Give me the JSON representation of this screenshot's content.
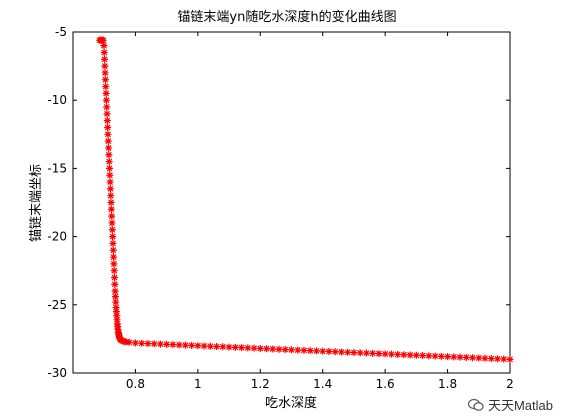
{
  "chart_data": {
    "type": "scatter",
    "title": "锚链末端yn随吃水深度h的变化曲线图",
    "xlabel": "吃水深度",
    "ylabel": "锚链末端坐标",
    "xlim": [
      0.6,
      2.0
    ],
    "ylim": [
      -30,
      -5
    ],
    "xticks": [
      0.8,
      1,
      1.2,
      1.4,
      1.6,
      1.8,
      2
    ],
    "xtick_labels": [
      "0.8",
      "1",
      "1.2",
      "1.4",
      "1.6",
      "1.8",
      "2"
    ],
    "yticks": [
      -5,
      -10,
      -15,
      -20,
      -25,
      -30
    ],
    "ytick_labels": [
      "-5",
      "-10",
      "-15",
      "-20",
      "-25",
      "-30"
    ],
    "marker": "*",
    "color": "#ff0000",
    "grid": false,
    "series": [
      {
        "x": [
          0.685,
          0.689,
          0.693,
          0.697,
          0.699,
          0.7,
          0.701,
          0.702,
          0.703,
          0.704,
          0.705,
          0.706,
          0.707,
          0.708,
          0.709,
          0.71,
          0.711,
          0.712,
          0.713,
          0.714,
          0.715,
          0.716,
          0.717,
          0.718,
          0.719,
          0.72,
          0.721,
          0.722,
          0.723,
          0.724,
          0.725,
          0.726,
          0.727,
          0.728,
          0.729,
          0.73,
          0.731,
          0.732,
          0.733,
          0.734,
          0.735,
          0.736,
          0.737,
          0.738,
          0.739,
          0.74,
          0.741,
          0.742,
          0.743,
          0.744,
          0.745,
          0.746,
          0.747,
          0.748,
          0.749,
          0.75,
          0.752,
          0.755,
          0.76,
          0.765,
          0.77,
          0.78,
          0.8,
          0.82,
          0.84,
          0.86,
          0.88,
          0.9,
          0.92,
          0.94,
          0.96,
          0.98,
          1.0,
          1.02,
          1.04,
          1.06,
          1.08,
          1.1,
          1.12,
          1.14,
          1.16,
          1.18,
          1.2,
          1.22,
          1.24,
          1.26,
          1.28,
          1.3,
          1.32,
          1.34,
          1.36,
          1.38,
          1.4,
          1.42,
          1.44,
          1.46,
          1.48,
          1.5,
          1.52,
          1.54,
          1.56,
          1.58,
          1.6,
          1.62,
          1.64,
          1.66,
          1.68,
          1.7,
          1.72,
          1.74,
          1.76,
          1.78,
          1.8,
          1.82,
          1.84,
          1.86,
          1.88,
          1.9,
          1.92,
          1.94,
          1.96,
          1.98,
          2.0
        ],
        "y": [
          -5.6,
          -5.6,
          -5.6,
          -5.6,
          -6.0,
          -6.5,
          -7.0,
          -7.5,
          -8.0,
          -8.5,
          -9.0,
          -9.5,
          -10.0,
          -10.5,
          -11.0,
          -11.5,
          -12.0,
          -12.5,
          -13.0,
          -13.5,
          -14.0,
          -14.5,
          -15.0,
          -15.5,
          -16.0,
          -16.5,
          -17.0,
          -17.5,
          -18.0,
          -18.5,
          -19.0,
          -19.5,
          -20.0,
          -20.5,
          -21.0,
          -21.5,
          -22.0,
          -22.5,
          -23.0,
          -23.5,
          -24.0,
          -24.4,
          -24.8,
          -25.2,
          -25.5,
          -25.8,
          -26.1,
          -26.4,
          -26.6,
          -26.8,
          -27.0,
          -27.1,
          -27.2,
          -27.3,
          -27.4,
          -27.45,
          -27.55,
          -27.6,
          -27.65,
          -27.7,
          -27.72,
          -27.75,
          -27.8,
          -27.82,
          -27.84,
          -27.86,
          -27.88,
          -27.9,
          -27.92,
          -27.94,
          -27.96,
          -27.98,
          -28.0,
          -28.02,
          -28.04,
          -28.06,
          -28.08,
          -28.1,
          -28.12,
          -28.14,
          -28.16,
          -28.18,
          -28.2,
          -28.22,
          -28.24,
          -28.26,
          -28.28,
          -28.3,
          -28.32,
          -28.34,
          -28.36,
          -28.38,
          -28.4,
          -28.42,
          -28.44,
          -28.46,
          -28.48,
          -28.5,
          -28.52,
          -28.54,
          -28.56,
          -28.58,
          -28.6,
          -28.62,
          -28.64,
          -28.66,
          -28.68,
          -28.7,
          -28.72,
          -28.74,
          -28.76,
          -28.78,
          -28.8,
          -28.82,
          -28.84,
          -28.86,
          -28.88,
          -28.9,
          -28.92,
          -28.94,
          -28.96,
          -28.98,
          -29.0
        ]
      }
    ]
  },
  "watermark": {
    "text": "天天Matlab",
    "icon": "wechat-icon"
  }
}
